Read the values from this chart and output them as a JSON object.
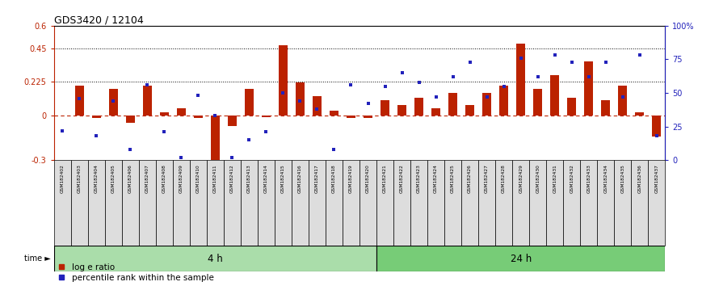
{
  "title": "GDS3420 / 12104",
  "categories": [
    "GSM182402",
    "GSM182403",
    "GSM182404",
    "GSM182405",
    "GSM182406",
    "GSM182407",
    "GSM182408",
    "GSM182409",
    "GSM182410",
    "GSM182411",
    "GSM182412",
    "GSM182413",
    "GSM182414",
    "GSM182415",
    "GSM182416",
    "GSM182417",
    "GSM182418",
    "GSM182419",
    "GSM182420",
    "GSM182421",
    "GSM182422",
    "GSM182423",
    "GSM182424",
    "GSM182425",
    "GSM182426",
    "GSM182427",
    "GSM182428",
    "GSM182429",
    "GSM182430",
    "GSM182431",
    "GSM182432",
    "GSM182433",
    "GSM182434",
    "GSM182435",
    "GSM182436",
    "GSM182437"
  ],
  "log_ratio": [
    0.0,
    0.2,
    -0.02,
    0.18,
    -0.05,
    0.2,
    0.02,
    0.05,
    -0.02,
    -0.32,
    -0.07,
    0.18,
    -0.01,
    0.47,
    0.22,
    0.13,
    0.03,
    -0.02,
    -0.02,
    0.1,
    0.07,
    0.12,
    0.05,
    0.15,
    0.07,
    0.15,
    0.2,
    0.48,
    0.18,
    0.27,
    0.12,
    0.36,
    0.1,
    0.2,
    0.02,
    -0.14
  ],
  "percentile": [
    22,
    46,
    18,
    44,
    8,
    56,
    21,
    2,
    48,
    33,
    2,
    15,
    21,
    50,
    44,
    38,
    8,
    56,
    42,
    55,
    65,
    58,
    47,
    62,
    73,
    47,
    55,
    76,
    62,
    78,
    73,
    62,
    73,
    47,
    78,
    18
  ],
  "yticks_left": [
    -0.3,
    0.0,
    0.225,
    0.45,
    0.6
  ],
  "ytick_labels_left": [
    "-0.3",
    "0",
    "0.225",
    "0.45",
    "0.6"
  ],
  "yticks_right": [
    0,
    25,
    50,
    75,
    100
  ],
  "ytick_labels_right": [
    "0",
    "25",
    "50",
    "75",
    "100%"
  ],
  "hlines": [
    0.45,
    0.225
  ],
  "n_4h": 19,
  "time_groups": [
    {
      "label": "4 h",
      "start": 0,
      "end": 19,
      "color": "#aaddaa"
    },
    {
      "label": "24 h",
      "start": 19,
      "end": 36,
      "color": "#77cc77"
    }
  ],
  "bar_color": "#bb2200",
  "dot_color": "#2222bb",
  "bar_color_left": "#bb2200",
  "bar_color_right": "#2222bb",
  "background_color": "#ffffff"
}
